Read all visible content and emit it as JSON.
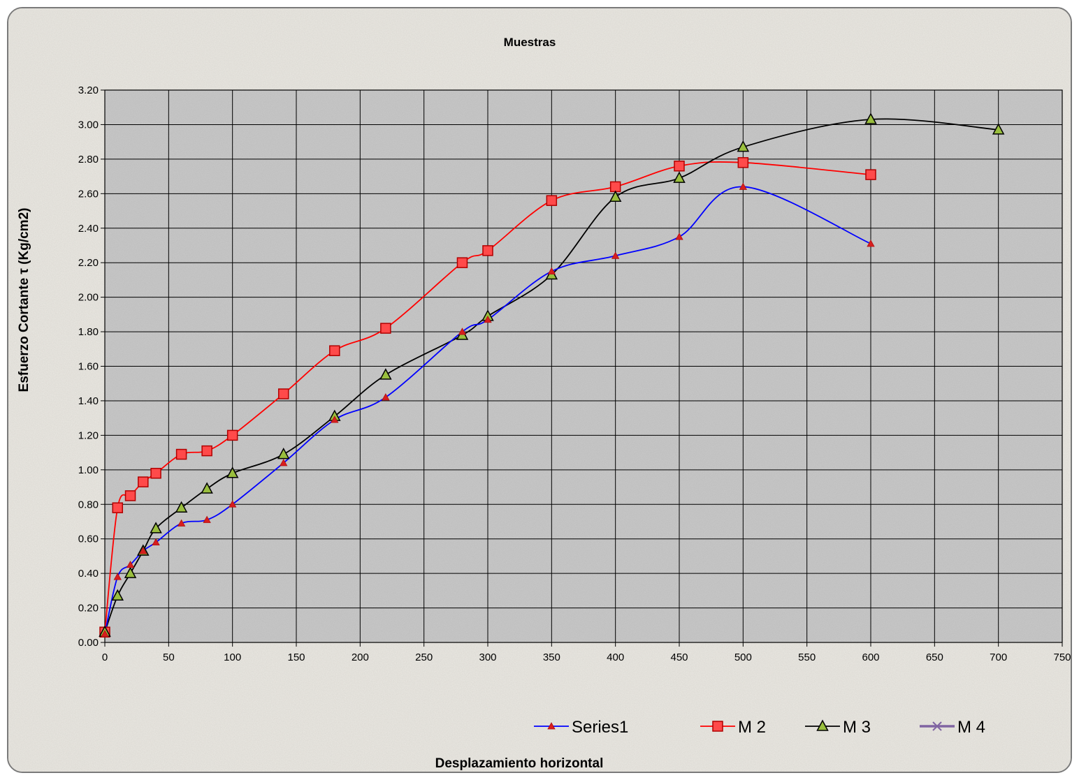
{
  "chart_data": {
    "type": "line",
    "title": "Muestras",
    "xlabel": "Desplazamiento horizontal",
    "ylabel": "Esfuerzo Cortante τ (Kg/cm2)",
    "xlim": [
      0,
      750
    ],
    "ylim": [
      0,
      3.2
    ],
    "x_ticks": [
      "0",
      "50",
      "100",
      "150",
      "200",
      "250",
      "300",
      "350",
      "400",
      "450",
      "500",
      "550",
      "600",
      "650",
      "700",
      "750"
    ],
    "y_ticks": [
      "0.00",
      "0.20",
      "0.40",
      "0.60",
      "0.80",
      "1.00",
      "1.20",
      "1.40",
      "1.60",
      "1.80",
      "2.00",
      "2.20",
      "2.40",
      "2.60",
      "2.80",
      "3.00",
      "3.20"
    ],
    "grid": true,
    "legend_position": "bottom-right",
    "series": [
      {
        "name": "Series1",
        "color": "#0000ff",
        "marker": "triangle",
        "marker_color": "#d81e1e",
        "x": [
          0,
          10,
          20,
          30,
          40,
          60,
          80,
          100,
          140,
          180,
          220,
          280,
          300,
          350,
          400,
          450,
          500,
          600
        ],
        "y": [
          0.05,
          0.38,
          0.45,
          0.53,
          0.58,
          0.69,
          0.71,
          0.8,
          1.04,
          1.29,
          1.42,
          1.8,
          1.87,
          2.15,
          2.24,
          2.35,
          2.64,
          2.31
        ]
      },
      {
        "name": "M 2",
        "color": "#ff0000",
        "marker": "square",
        "marker_color": "#ff4a4a",
        "x": [
          0,
          10,
          20,
          30,
          40,
          60,
          80,
          100,
          140,
          180,
          220,
          280,
          300,
          350,
          400,
          450,
          500,
          600
        ],
        "y": [
          0.06,
          0.78,
          0.85,
          0.93,
          0.98,
          1.09,
          1.11,
          1.2,
          1.44,
          1.69,
          1.82,
          2.2,
          2.27,
          2.56,
          2.64,
          2.76,
          2.78,
          2.71
        ]
      },
      {
        "name": "M 3",
        "color": "#000000",
        "marker": "triangle",
        "marker_color": "#9abf3e",
        "x": [
          0,
          10,
          20,
          30,
          40,
          60,
          80,
          100,
          140,
          180,
          220,
          280,
          300,
          350,
          400,
          450,
          500,
          600,
          700
        ],
        "y": [
          0.06,
          0.27,
          0.4,
          0.53,
          0.66,
          0.78,
          0.89,
          0.98,
          1.09,
          1.31,
          1.55,
          1.78,
          1.89,
          2.13,
          2.58,
          2.69,
          2.87,
          3.03,
          2.97
        ]
      },
      {
        "name": "M 4",
        "color": "#8064a2",
        "marker": "x",
        "marker_color": "#8064a2",
        "x": [],
        "y": []
      }
    ]
  }
}
